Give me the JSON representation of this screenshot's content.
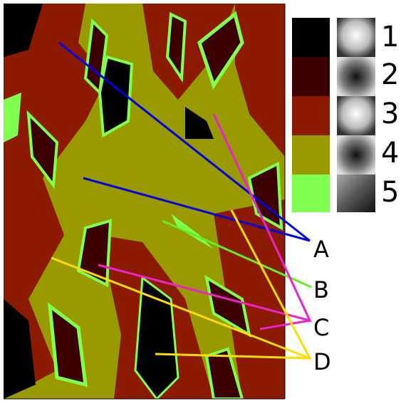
{
  "legend": {
    "items": [
      {
        "label": "1"
      },
      {
        "label": "2"
      },
      {
        "label": "3"
      },
      {
        "label": "4"
      },
      {
        "label": "5"
      }
    ]
  },
  "callouts": [
    {
      "label": "A"
    },
    {
      "label": "B"
    },
    {
      "label": "C"
    },
    {
      "label": "D"
    }
  ]
}
